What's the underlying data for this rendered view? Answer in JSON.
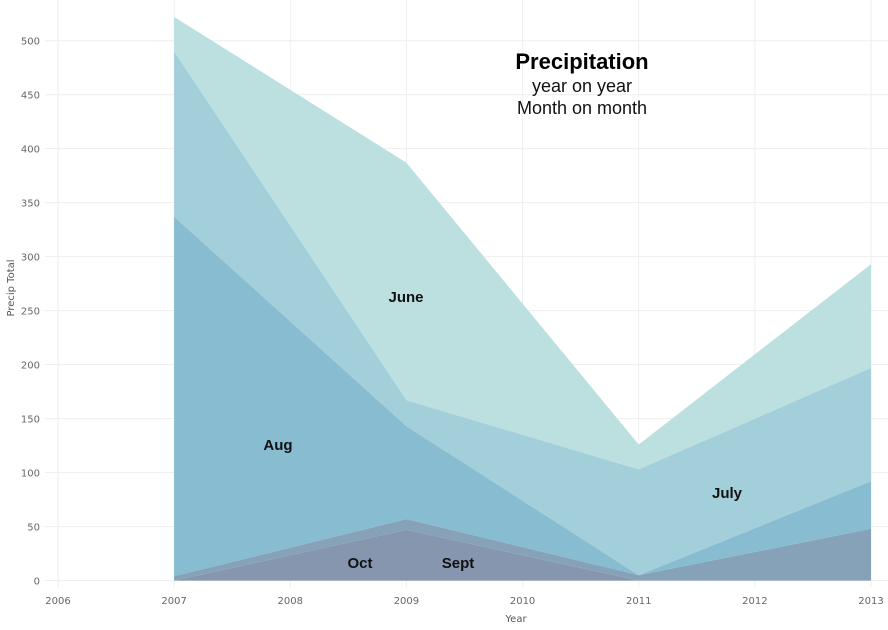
{
  "chart_data": {
    "type": "area",
    "title": "Precipitation",
    "subtitle_lines": [
      "year on year",
      "Month on month"
    ],
    "xlabel": "Year",
    "ylabel": "Precip Total",
    "x_ticks": [
      2006,
      2007,
      2008,
      2009,
      2010,
      2011,
      2012,
      2013
    ],
    "y_ticks": [
      0,
      50,
      100,
      150,
      200,
      250,
      300,
      350,
      400,
      450,
      500
    ],
    "xlim": [
      2006,
      2013
    ],
    "ylim": [
      -5,
      522
    ],
    "grid": true,
    "stacked": true,
    "x": [
      2007,
      2009,
      2011,
      2013
    ],
    "series": [
      {
        "name": "Oct",
        "values": [
          0,
          47,
          0,
          0
        ],
        "color": "#8596AE"
      },
      {
        "name": "Sept",
        "values": [
          4,
          10,
          5,
          48
        ],
        "color": "#85A2B8"
      },
      {
        "name": "Aug",
        "values": [
          333,
          86,
          0,
          44
        ],
        "color": "#88BCD0"
      },
      {
        "name": "July",
        "values": [
          153,
          24,
          98,
          105
        ],
        "color": "#A3CFDA"
      },
      {
        "name": "June",
        "values": [
          32,
          220,
          23,
          96
        ],
        "color": "#BCE0E0"
      }
    ],
    "labels": [
      {
        "text": "June",
        "series": "June"
      },
      {
        "text": "Aug",
        "series": "Aug"
      },
      {
        "text": "July",
        "series": "July"
      },
      {
        "text": "Oct",
        "series": "Oct"
      },
      {
        "text": "Sept",
        "series": "Sept"
      }
    ]
  }
}
